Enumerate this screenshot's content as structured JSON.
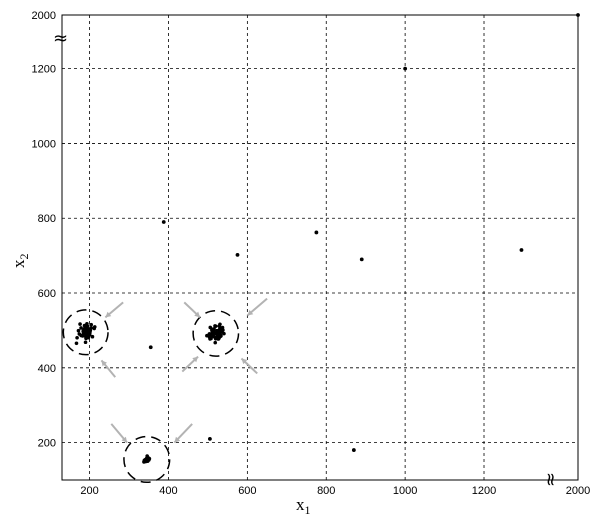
{
  "chart_data": {
    "type": "scatter",
    "title": "",
    "xlabel": {
      "main": "x",
      "sub": "1"
    },
    "ylabel": {
      "main": "x",
      "sub": "2"
    },
    "xlim": [
      130,
      2000
    ],
    "ylim": [
      100,
      2000
    ],
    "axis_break_x": {
      "before": 1380,
      "after": 2000,
      "symbol": "≈"
    },
    "axis_break_y": {
      "before": 1290,
      "after": 2000,
      "symbol": "≈"
    },
    "x_ticks": [
      200,
      400,
      600,
      800,
      1000,
      1200,
      2000
    ],
    "x_tick_labels": [
      "200",
      "400",
      "600",
      "800",
      "1000",
      "1200",
      "2000"
    ],
    "y_ticks": [
      200,
      400,
      600,
      800,
      1000,
      1200,
      2000
    ],
    "y_tick_labels": [
      "200",
      "400",
      "600",
      "800",
      "1000",
      "1200",
      "2000"
    ],
    "grid": true,
    "grid_style": "dashed",
    "clusters": [
      {
        "center": [
          190,
          495
        ],
        "spread": [
          28,
          34
        ],
        "count": 45,
        "circle_radius_x": 135
      },
      {
        "center": [
          520,
          492
        ],
        "spread": [
          30,
          30
        ],
        "count": 65,
        "circle_radius_x": 137
      },
      {
        "center": [
          345,
          155
        ],
        "spread": [
          12,
          12
        ],
        "count": 18,
        "circle_radius_x": 138
      }
    ],
    "outliers": [
      {
        "x": 388,
        "y": 790
      },
      {
        "x": 575,
        "y": 702
      },
      {
        "x": 775,
        "y": 762
      },
      {
        "x": 890,
        "y": 690
      },
      {
        "x": 1000,
        "y": 1200
      },
      {
        "x": 1295,
        "y": 715
      },
      {
        "x": 2000,
        "y": 2000
      },
      {
        "x": 505,
        "y": 210
      },
      {
        "x": 870,
        "y": 180
      },
      {
        "x": 355,
        "y": 455
      }
    ],
    "arrows": [
      {
        "from": [
          285,
          575
        ],
        "to": [
          240,
          535
        ]
      },
      {
        "from": [
          265,
          375
        ],
        "to": [
          230,
          420
        ]
      },
      {
        "from": [
          440,
          575
        ],
        "to": [
          480,
          535
        ]
      },
      {
        "from": [
          650,
          585
        ],
        "to": [
          600,
          540
        ]
      },
      {
        "from": [
          435,
          390
        ],
        "to": [
          475,
          430
        ]
      },
      {
        "from": [
          625,
          385
        ],
        "to": [
          585,
          425
        ]
      },
      {
        "from": [
          255,
          250
        ],
        "to": [
          295,
          200
        ]
      },
      {
        "from": [
          460,
          250
        ],
        "to": [
          415,
          200
        ]
      }
    ],
    "colors": {
      "points": "#000000",
      "grid": "#000000",
      "circles": "#000000",
      "arrows": "#b3b3b3"
    }
  }
}
